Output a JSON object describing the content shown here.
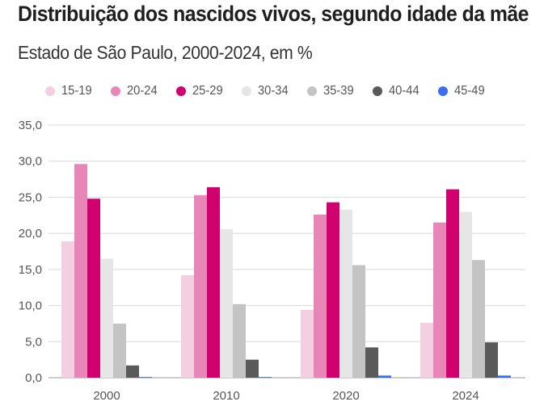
{
  "header": {
    "title": "Distribuição dos nascidos vivos, segundo idade da mãe",
    "subtitle": "Estado de São Paulo, 2000-2024, em %"
  },
  "chart_data": {
    "type": "bar",
    "categories": [
      "2000",
      "2010",
      "2020",
      "2024"
    ],
    "series": [
      {
        "name": "15-19",
        "color": "#f4cfe2",
        "values": [
          18.9,
          14.2,
          9.4,
          7.6
        ]
      },
      {
        "name": "20-24",
        "color": "#e986b8",
        "values": [
          29.6,
          25.3,
          22.6,
          21.5
        ]
      },
      {
        "name": "25-29",
        "color": "#d1006f",
        "values": [
          24.8,
          26.4,
          24.3,
          26.1
        ]
      },
      {
        "name": "30-34",
        "color": "#e6e6e6",
        "values": [
          16.5,
          20.6,
          23.3,
          23.0
        ]
      },
      {
        "name": "35-39",
        "color": "#c4c4c4",
        "values": [
          7.5,
          10.2,
          15.6,
          16.3
        ]
      },
      {
        "name": "40-44",
        "color": "#5a5a5a",
        "values": [
          1.7,
          2.5,
          4.2,
          4.9
        ]
      },
      {
        "name": "45-49",
        "color": "#3a6df0",
        "values": [
          0.1,
          0.1,
          0.3,
          0.3
        ]
      }
    ],
    "yticks": [
      "0,0",
      "5,0",
      "10,0",
      "15,0",
      "20,0",
      "25,0",
      "30,0",
      "35,0"
    ],
    "ylim": [
      0,
      35
    ],
    "grid": true,
    "legend": "top"
  }
}
